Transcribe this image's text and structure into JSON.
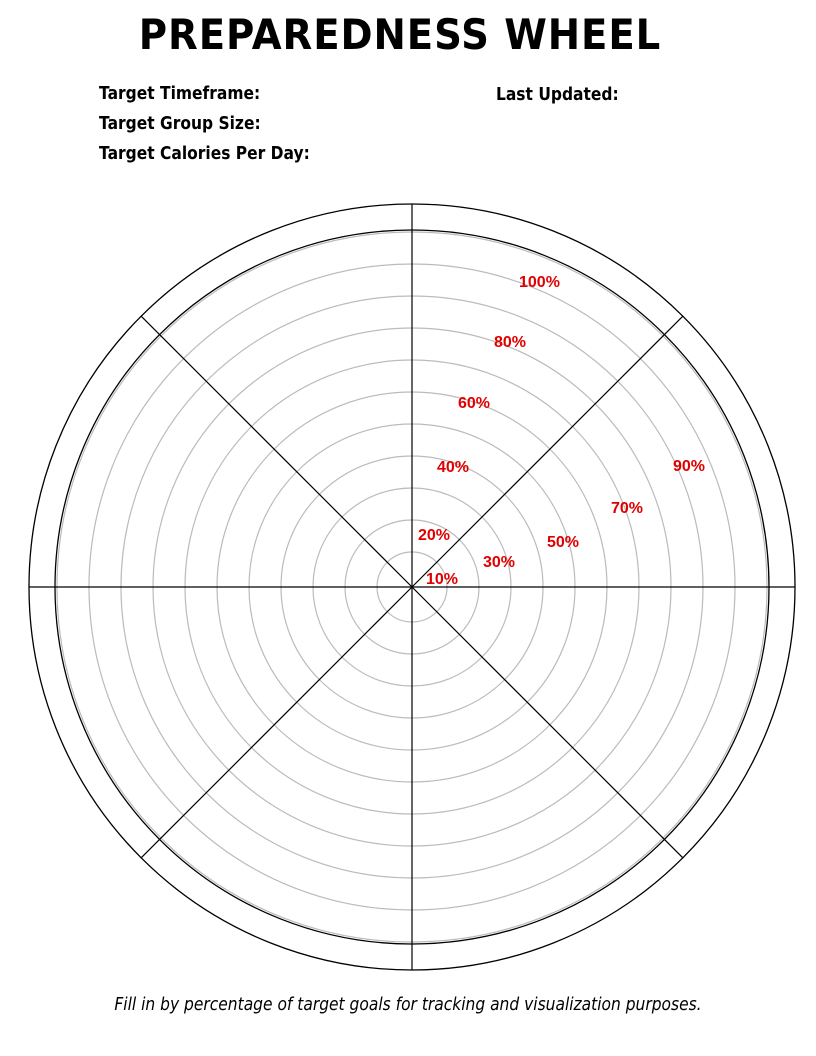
{
  "title": "PREPAREDNESS WHEEL",
  "fields": {
    "timeframe_label": "Target Timeframe:",
    "group_size_label": "Target Group Size:",
    "calories_label": "Target Calories Per Day:",
    "last_updated_label": "Last Updated:"
  },
  "wheel": {
    "ring_labels": [
      "10%",
      "20%",
      "30%",
      "40%",
      "50%",
      "60%",
      "70%",
      "80%",
      "90%",
      "100%"
    ],
    "sectors": 8,
    "ring_color": "#bbbbbb",
    "line_color": "#000000",
    "label_color": "#e00000"
  },
  "footer": "Fill in by percentage of target goals for tracking and visualization purposes."
}
